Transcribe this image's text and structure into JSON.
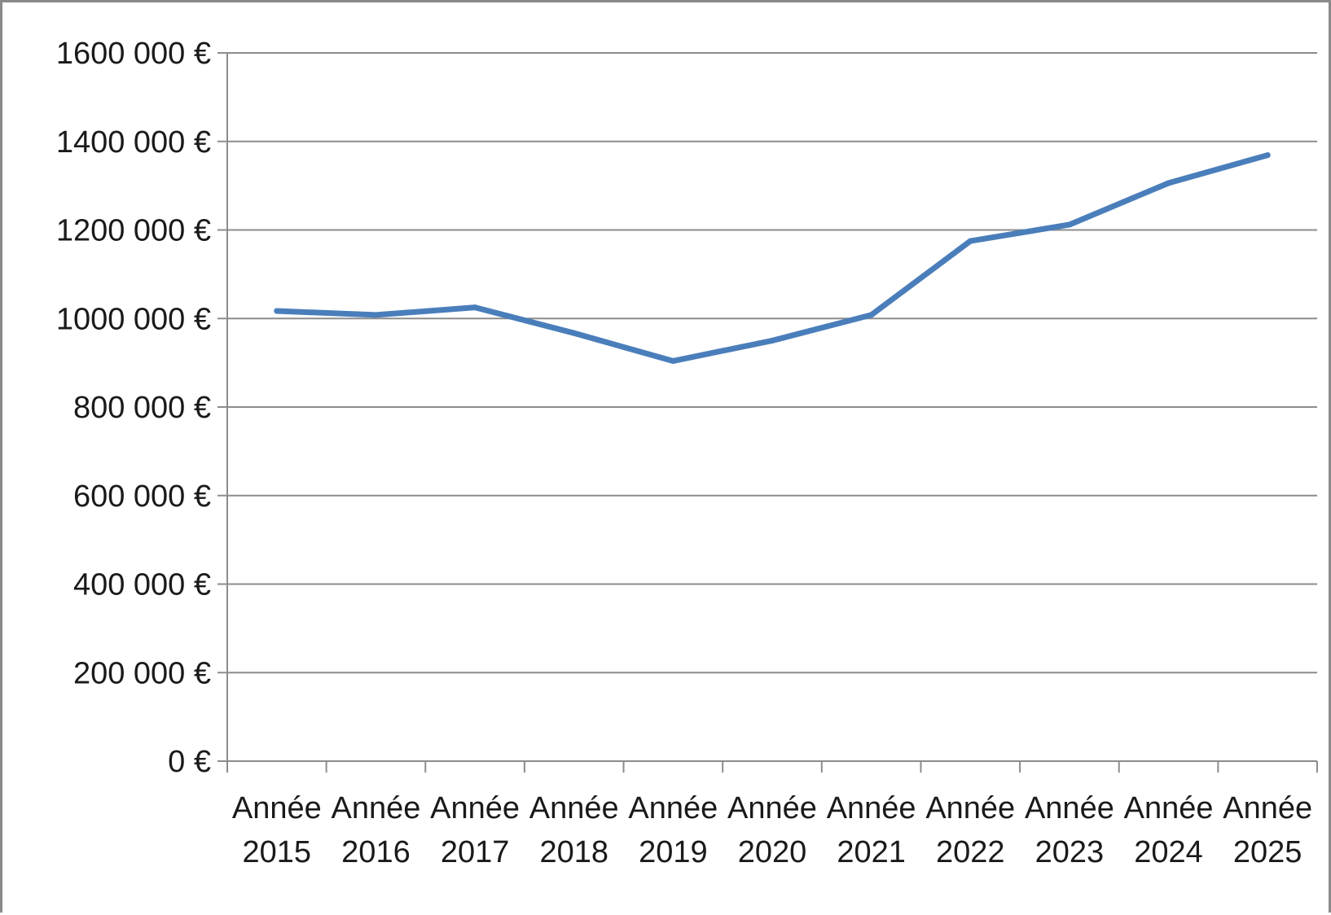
{
  "chart_data": {
    "type": "line",
    "title": "",
    "xlabel": "",
    "ylabel": "",
    "categories": [
      [
        "Année",
        "2015"
      ],
      [
        "Année",
        "2016"
      ],
      [
        "Année",
        "2017"
      ],
      [
        "Année",
        "2018"
      ],
      [
        "Année",
        "2019"
      ],
      [
        "Année",
        "2020"
      ],
      [
        "Année",
        "2021"
      ],
      [
        "Année",
        "2022"
      ],
      [
        "Année",
        "2023"
      ],
      [
        "Année",
        "2024"
      ],
      [
        "Année",
        "2025"
      ]
    ],
    "series": [
      {
        "values": [
          1017000,
          1008000,
          1025000,
          967000,
          904000,
          950000,
          1008000,
          1175000,
          1212000,
          1306000,
          1369000
        ],
        "color": "#4a7ebb"
      }
    ],
    "ylim": [
      0,
      1600000
    ],
    "yticks": [
      0,
      200000,
      400000,
      600000,
      800000,
      1000000,
      1200000,
      1400000,
      1600000
    ],
    "ytick_labels": [
      "0 €",
      "200 000 €",
      "400 000 €",
      "600 000 €",
      "800 000 €",
      "1000 000 €",
      "1200 000 €",
      "1400 000 €",
      "1600 000 €"
    ],
    "grid": true,
    "legend": "none",
    "colors": {
      "line": "#4a7ebb",
      "grid": "#8c8c8c",
      "axis": "#8c8c8c",
      "border": "#8a8a8a",
      "text": "#1a1a1a"
    }
  }
}
